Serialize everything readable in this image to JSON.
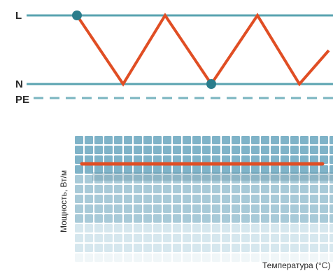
{
  "wiring": {
    "labels": {
      "live": "L",
      "neutral": "N",
      "earth": "PE"
    },
    "colors": {
      "wire": "#5aa3b0",
      "earth_dash": "#7ab5c0",
      "heating_element": "#e04e24",
      "junction": "#2a7d8c"
    }
  },
  "heat_panel": {
    "ylabel": "Мощность, Вт/м",
    "xlabel": "Температура (°C)",
    "colors": {
      "cell_dark": "#7fb3c8",
      "cell_mid": "#a8cad8",
      "cell_light": "#d6e7ee",
      "cell_faint": "#f0f6f8",
      "power_line": "#e04e24"
    }
  }
}
